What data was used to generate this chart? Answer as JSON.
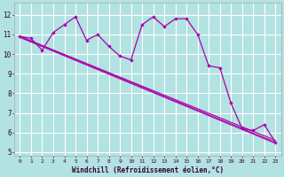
{
  "xlabel": "Windchill (Refroidissement éolien,°C)",
  "background_color": "#b2e2e2",
  "grid_color": "#ffffff",
  "line_color": "#aa00aa",
  "x_ticks": [
    0,
    1,
    2,
    3,
    4,
    5,
    6,
    7,
    8,
    9,
    10,
    11,
    12,
    13,
    14,
    15,
    16,
    17,
    18,
    19,
    20,
    21,
    22,
    23
  ],
  "y_ticks": [
    5,
    6,
    7,
    8,
    9,
    10,
    11,
    12
  ],
  "ylim": [
    4.8,
    12.6
  ],
  "xlim": [
    -0.5,
    23.5
  ],
  "zigzag": [
    10.9,
    10.8,
    10.2,
    11.1,
    11.5,
    11.9,
    10.7,
    11.0,
    10.4,
    9.9,
    9.7,
    11.5,
    11.9,
    11.4,
    11.8,
    11.8,
    11.0,
    9.4,
    9.3,
    7.5,
    6.2,
    6.1,
    6.4,
    5.5
  ],
  "line1": [
    [
      0,
      10.9
    ],
    [
      23,
      5.5
    ]
  ],
  "line2": [
    [
      0,
      10.9
    ],
    [
      23,
      5.6
    ]
  ],
  "line3": [
    [
      0,
      10.85
    ],
    [
      23,
      5.45
    ]
  ]
}
